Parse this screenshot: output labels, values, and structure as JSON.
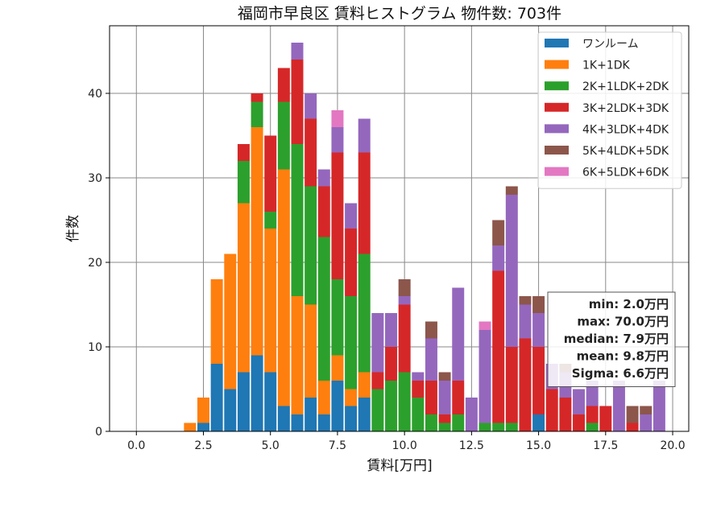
{
  "chart_data": {
    "type": "bar",
    "stacked": true,
    "title": "福岡市早良区 賃料ヒストグラム 物件数: 703件",
    "xlabel": "賃料[万円]",
    "ylabel": "件数",
    "xlim": [
      -1.0,
      20.6
    ],
    "ylim": [
      0,
      48
    ],
    "xticks": [
      0.0,
      2.5,
      5.0,
      7.5,
      10.0,
      12.5,
      15.0,
      17.5,
      20.0
    ],
    "xtick_labels": [
      "0.0",
      "2.5",
      "5.0",
      "7.5",
      "10.0",
      "12.5",
      "15.0",
      "17.5",
      "20.0"
    ],
    "yticks": [
      0,
      10,
      20,
      30,
      40
    ],
    "ytick_labels": [
      "0",
      "10",
      "20",
      "30",
      "40"
    ],
    "grid": true,
    "bin_width": 0.5,
    "legend_position": "top-right",
    "bins_start": [
      1.75,
      2.25,
      2.75,
      3.25,
      3.75,
      4.25,
      4.75,
      5.25,
      5.75,
      6.25,
      6.75,
      7.25,
      7.75,
      8.25,
      8.75,
      9.25,
      9.75,
      10.25,
      10.75,
      11.25,
      11.75,
      12.25,
      12.75,
      13.25,
      13.75,
      14.25,
      14.75,
      15.25,
      15.75,
      16.25,
      16.75,
      17.25,
      17.75,
      18.25,
      18.75,
      19.25
    ],
    "series": [
      {
        "name": "ワンルーム",
        "color": "#1f77b4",
        "values": [
          0,
          1,
          8,
          5,
          7,
          9,
          7,
          3,
          2,
          4,
          2,
          6,
          3,
          4,
          0,
          0,
          0,
          0,
          0,
          0,
          0,
          0,
          0,
          0,
          0,
          0,
          2,
          0,
          0,
          0,
          0,
          0,
          0,
          0,
          0,
          0
        ]
      },
      {
        "name": "1K+1DK",
        "color": "#ff7f0e",
        "values": [
          1,
          3,
          10,
          16,
          20,
          27,
          17,
          28,
          14,
          11,
          4,
          3,
          2,
          3,
          0,
          0,
          0,
          0,
          0,
          0,
          0,
          0,
          0,
          0,
          0,
          0,
          0,
          0,
          0,
          0,
          0,
          0,
          0,
          0,
          0,
          0
        ]
      },
      {
        "name": "2K+1LDK+2DK",
        "color": "#2ca02c",
        "values": [
          0,
          0,
          0,
          0,
          5,
          3,
          2,
          8,
          18,
          14,
          17,
          9,
          11,
          14,
          5,
          6,
          7,
          4,
          2,
          1,
          2,
          0,
          1,
          1,
          1,
          0,
          0,
          0,
          0,
          0,
          1,
          0,
          0,
          0,
          0,
          0
        ]
      },
      {
        "name": "3K+2LDK+3DK",
        "color": "#d62728",
        "values": [
          0,
          0,
          0,
          0,
          2,
          1,
          9,
          4,
          10,
          8,
          6,
          15,
          8,
          12,
          2,
          4,
          8,
          2,
          4,
          1,
          4,
          0,
          0,
          18,
          9,
          11,
          8,
          5,
          4,
          2,
          2,
          3,
          0,
          1,
          0,
          0
        ]
      },
      {
        "name": "4K+3LDK+4DK",
        "color": "#9467bd",
        "values": [
          0,
          0,
          0,
          0,
          0,
          0,
          0,
          0,
          2,
          3,
          2,
          3,
          3,
          4,
          7,
          4,
          1,
          1,
          5,
          4,
          11,
          4,
          11,
          3,
          18,
          4,
          4,
          3,
          3,
          3,
          3,
          0,
          6,
          0,
          2,
          6
        ]
      },
      {
        "name": "5K+4LDK+5DK",
        "color": "#8c564b",
        "values": [
          0,
          0,
          0,
          0,
          0,
          0,
          0,
          0,
          0,
          0,
          0,
          0,
          0,
          0,
          0,
          0,
          2,
          0,
          2,
          1,
          0,
          0,
          0,
          3,
          1,
          1,
          2,
          0,
          1,
          0,
          0,
          0,
          0,
          2,
          1,
          0
        ]
      },
      {
        "name": "6K+5LDK+6DK",
        "color": "#e377c2",
        "values": [
          0,
          0,
          0,
          0,
          0,
          0,
          0,
          0,
          0,
          0,
          0,
          2,
          0,
          0,
          0,
          0,
          0,
          0,
          0,
          0,
          0,
          0,
          1,
          0,
          0,
          0,
          0,
          0,
          0,
          0,
          0,
          0,
          0,
          0,
          0,
          0
        ]
      }
    ],
    "stats": {
      "lines": [
        "min: 2.0万円",
        "max: 70.0万円",
        "median: 7.9万円",
        "mean: 9.8万円",
        "Sigma: 6.6万円"
      ]
    }
  }
}
